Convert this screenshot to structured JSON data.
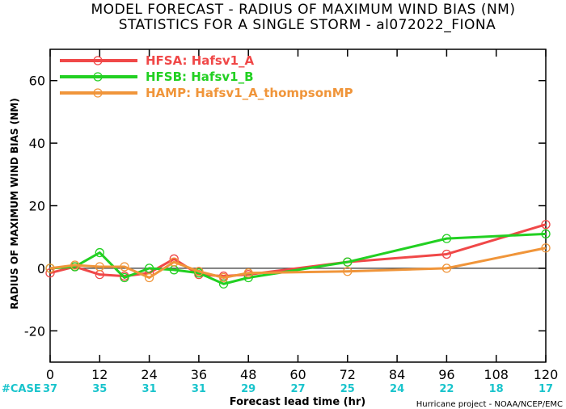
{
  "chart_data": {
    "type": "line",
    "title": "MODEL FORECAST - RADIUS OF MAXIMUM WIND BIAS (NM)",
    "subtitle": "STATISTICS FOR A SINGLE STORM - al072022_FIONA",
    "xlabel": "Forecast lead time (hr)",
    "ylabel": "RADIUS OF MAXIMUM WIND BIAS (NM)",
    "xlim": [
      0,
      120
    ],
    "ylim": [
      -30,
      70
    ],
    "xticks": [
      "0",
      "12",
      "24",
      "36",
      "48",
      "60",
      "72",
      "84",
      "96",
      "108",
      "120"
    ],
    "yticks": [
      "-20",
      "0",
      "20",
      "40",
      "60"
    ],
    "case_label": "#CASE",
    "case_counts": [
      "37",
      "35",
      "31",
      "31",
      "29",
      "27",
      "25",
      "24",
      "22",
      "18",
      "17"
    ],
    "credit": "Hurricane project - NOAA/NCEP/EMC",
    "legend_position": "top-left",
    "zero_line": true,
    "series": [
      {
        "name": "HFSA: Hafsv1_A",
        "color": "#f04848",
        "x": [
          0,
          6,
          12,
          18,
          24,
          30,
          36,
          42,
          48,
          72,
          96,
          120
        ],
        "y": [
          -1.5,
          0.5,
          -2,
          -2.5,
          -1.5,
          3,
          -2,
          -2.5,
          -2,
          2,
          4.5,
          14
        ]
      },
      {
        "name": "HFSB: Hafsv1_B",
        "color": "#22d022",
        "x": [
          0,
          6,
          12,
          18,
          24,
          30,
          36,
          42,
          48,
          72,
          96,
          120
        ],
        "y": [
          0,
          0.5,
          5,
          -3,
          0,
          -0.5,
          -1.5,
          -5,
          -3,
          2,
          9.5,
          11
        ]
      },
      {
        "name": "HAMP: Hafsv1_A_thompsonMP",
        "color": "#f0953a",
        "x": [
          0,
          6,
          12,
          18,
          24,
          30,
          36,
          42,
          48,
          72,
          96,
          120
        ],
        "y": [
          0,
          1,
          0.5,
          0.5,
          -3,
          2,
          -1,
          -3,
          -1.5,
          -1,
          0,
          6.5
        ]
      }
    ]
  }
}
